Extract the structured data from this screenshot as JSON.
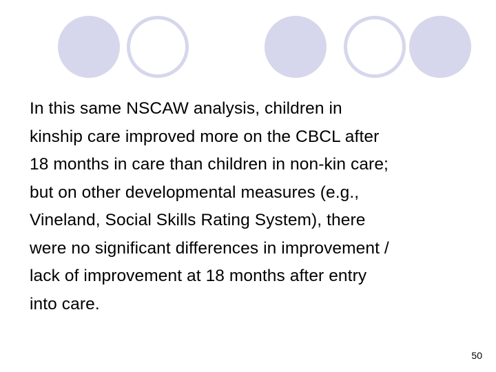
{
  "slide": {
    "body_lines": [
      "In this same NSCAW analysis, children in",
      "kinship care improved more on the CBCL after",
      "18 months in care than children in non-kin care;",
      "but on other developmental measures (e.g.,",
      "Vineland, Social Skills Rating System), there",
      "were no significant differences in improvement /",
      "lack of improvement at 18 months after entry",
      "into care."
    ],
    "page_number": "50"
  },
  "decoration": {
    "circle_color": "#d6d6ec",
    "circles": [
      "filled",
      "ring",
      "filled",
      "ring",
      "filled"
    ]
  }
}
